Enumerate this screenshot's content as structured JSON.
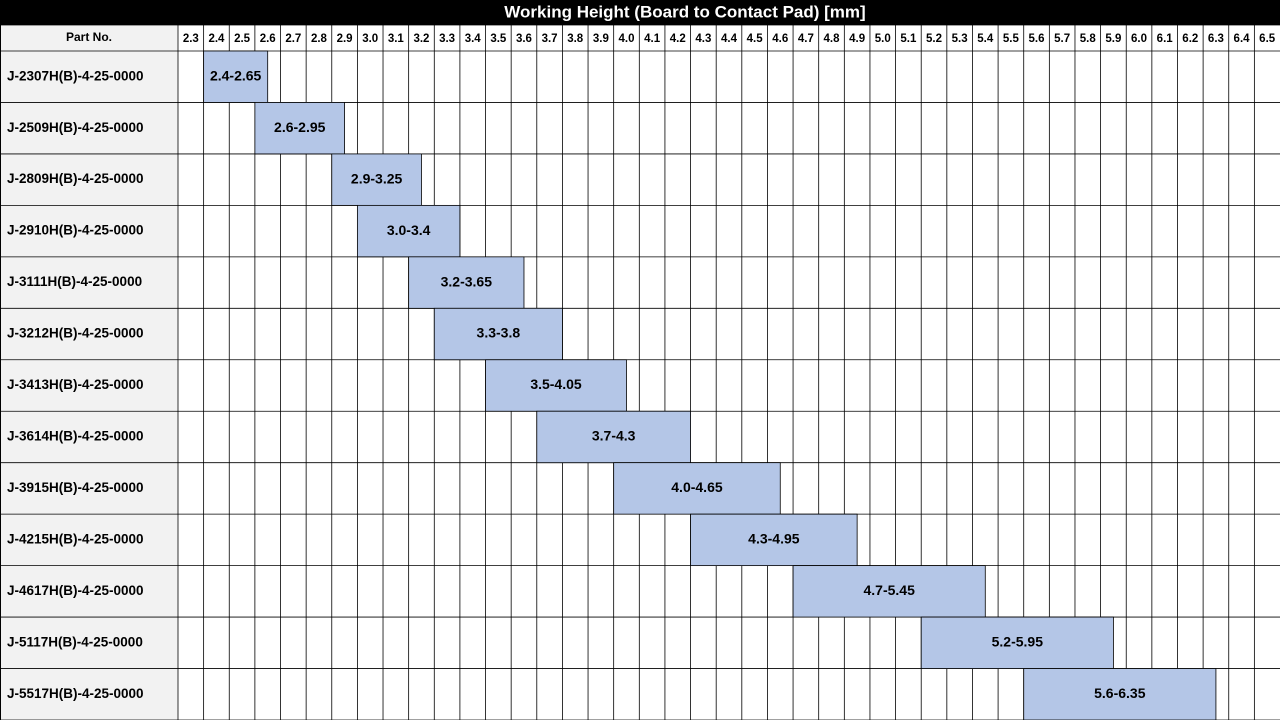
{
  "chart_data": {
    "type": "range",
    "title": "Working Height (Board to Contact Pad) [mm]",
    "category_header": "Part No.",
    "categories": [
      "J-2307H(B)-4-25-0000",
      "J-2509H(B)-4-25-0000",
      "J-2809H(B)-4-25-0000",
      "J-2910H(B)-4-25-0000",
      "J-3111H(B)-4-25-0000",
      "J-3212H(B)-4-25-0000",
      "J-3413H(B)-4-25-0000",
      "J-3614H(B)-4-25-0000",
      "J-3915H(B)-4-25-0000",
      "J-4215H(B)-4-25-0000",
      "J-4617H(B)-4-25-0000",
      "J-5117H(B)-4-25-0000",
      "J-5517H(B)-4-25-0000"
    ],
    "low": [
      2.4,
      2.6,
      2.9,
      3.0,
      3.2,
      3.3,
      3.5,
      3.7,
      4.0,
      4.3,
      4.7,
      5.2,
      5.6
    ],
    "high": [
      2.65,
      2.95,
      3.25,
      3.4,
      3.65,
      3.8,
      4.05,
      4.3,
      4.65,
      4.95,
      5.45,
      5.95,
      6.35
    ],
    "value_labels": [
      "2.4-2.65",
      "2.6-2.95",
      "2.9-3.25",
      "3.0-3.4",
      "3.2-3.65",
      "3.3-3.8",
      "3.5-4.05",
      "3.7-4.3",
      "4.0-4.65",
      "4.3-4.95",
      "4.7-5.45",
      "5.2-5.95",
      "5.6-6.35"
    ],
    "color": "#b4c6e7",
    "xlim": [
      2.3,
      6.6
    ],
    "xticks": [
      2.3,
      2.4,
      2.5,
      2.6,
      2.7,
      2.8,
      2.9,
      {
        "value": 3,
        "label": "3.0"
      },
      3.1,
      3.2,
      3.3,
      3.4,
      3.5,
      3.6,
      3.7,
      3.8,
      3.9,
      {
        "value": 4,
        "label": "4.0"
      },
      4.1,
      4.2,
      4.3,
      4.4,
      4.5,
      4.6,
      4.7,
      4.8,
      4.9,
      {
        "value": 5,
        "label": "5.0"
      },
      5.1,
      5.2,
      5.3,
      5.4,
      5.5,
      5.6,
      5.7,
      5.8,
      5.9,
      {
        "value": 6,
        "label": "6.0"
      },
      6.1,
      6.2,
      6.3,
      6.4,
      6.5
    ],
    "grid": true
  }
}
